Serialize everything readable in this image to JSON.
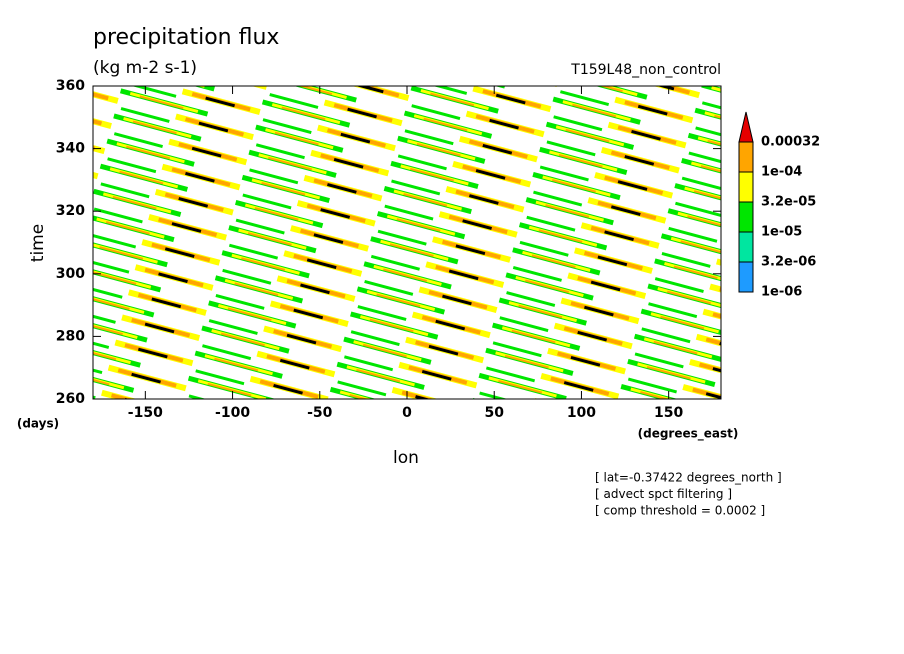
{
  "chart_data": {
    "type": "contour",
    "title": "precipitation flux",
    "units": "(kg m-2 s-1)",
    "run_name": "T159L48_non_control",
    "xlabel": "lon",
    "xunit": "(degrees_east)",
    "ylabel": "time",
    "yunit": "(days)",
    "xlim": [
      -180,
      180
    ],
    "xticks": [
      -150,
      -100,
      -50,
      0,
      50,
      100,
      150
    ],
    "ylim": [
      260,
      360
    ],
    "yticks": [
      260,
      280,
      300,
      320,
      340,
      360
    ],
    "levels": [
      {
        "value": 1e-06,
        "label": "1e-06"
      },
      {
        "value": 3.2e-06,
        "label": "3.2e-06"
      },
      {
        "value": 1e-05,
        "label": "1e-05"
      },
      {
        "value": 3.2e-05,
        "label": "3.2e-05"
      },
      {
        "value": 0.0001,
        "label": "1e-04"
      },
      0.00032
    ],
    "colors": [
      "#1e9bff",
      "#00e6a0",
      "#00e600",
      "#ffff00",
      "#ffa500",
      "#e60000"
    ],
    "notes": [
      "[ lat=-0.37422 degrees_north ]",
      "[ advect spct filtering ]",
      "[ comp threshold = 0.0002 ]"
    ]
  }
}
